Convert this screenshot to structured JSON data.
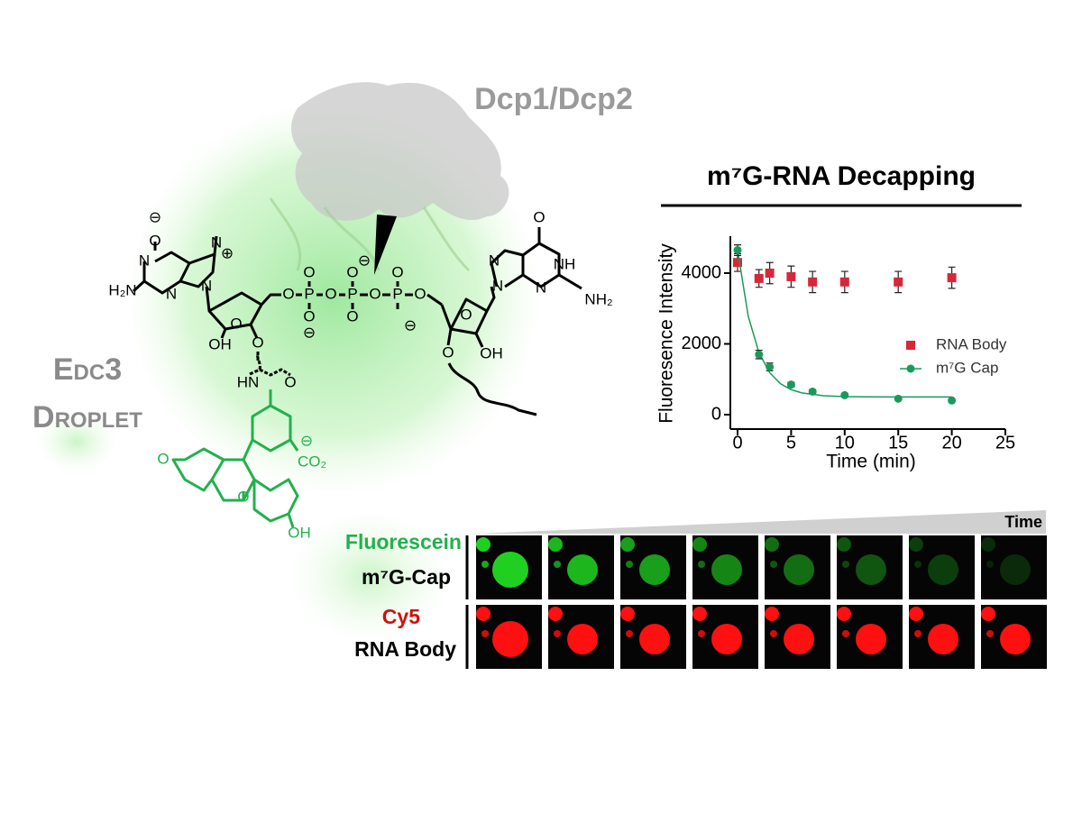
{
  "protein_label": "Dcp1/Dcp2",
  "droplet_label": [
    "Edc3",
    "Droplet"
  ],
  "molecule": {
    "labels": [
      "⊖",
      "O",
      "N",
      "⊕",
      "N",
      "N",
      "H₂N",
      "N",
      "O",
      "P",
      "O",
      "P",
      "O",
      "P",
      "O",
      "O",
      "⊖",
      "O",
      "O",
      "⊖",
      "O",
      "O",
      "⊖",
      "O",
      "OH",
      "O",
      "HN",
      "O",
      "⊖",
      "CO₂",
      "O",
      "O",
      "OH",
      "O",
      "N",
      "NH",
      "N",
      "N",
      "NH₂",
      "O",
      "O",
      "OH"
    ]
  },
  "chart_data": {
    "type": "scatter",
    "title": "m⁷G-RNA Decapping",
    "x_label": "Time (min)",
    "y_label": "Fluoresence Intensity",
    "x": [
      0,
      2,
      3,
      5,
      7,
      10,
      15,
      20
    ],
    "xlim": [
      0,
      25
    ],
    "xticks": [
      0,
      5,
      10,
      15,
      20,
      25
    ],
    "ylim": [
      0,
      5000
    ],
    "yticks": [
      0,
      2000,
      4000
    ],
    "legend": "right",
    "series": [
      {
        "name": "RNA Body",
        "color": "#d6283a",
        "marker": "square",
        "values": [
          4300,
          3850,
          4000,
          3900,
          3750,
          3750,
          3750,
          3870
        ],
        "errors": [
          250,
          250,
          300,
          300,
          300,
          300,
          300,
          300
        ]
      },
      {
        "name": "m⁷G Cap",
        "color": "#1a9a5a",
        "marker": "circle",
        "values": [
          4650,
          1700,
          1350,
          850,
          650,
          550,
          450,
          400
        ],
        "errors": [
          150,
          120,
          110,
          60,
          50,
          40,
          30,
          30
        ],
        "fit": {
          "x": [
            0,
            1,
            2,
            3,
            4,
            5,
            6,
            8,
            10,
            12,
            15,
            20
          ],
          "values": [
            4650,
            2778,
            1749,
            1185,
            876,
            707,
            614,
            534,
            510,
            503,
            500,
            500
          ]
        }
      }
    ]
  },
  "microscopy": {
    "time_label": "Time",
    "rows": [
      {
        "dye": "Fluorescein",
        "target": "m⁷G-Cap"
      },
      {
        "dye": "Cy5",
        "target": "RNA Body"
      }
    ]
  }
}
